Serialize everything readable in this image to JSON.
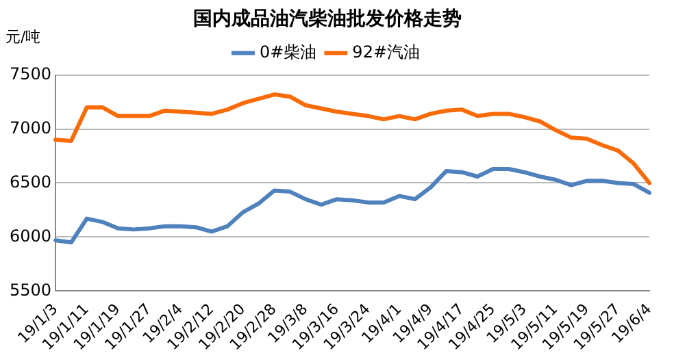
{
  "chart_data": {
    "type": "line",
    "title": "国内成品油汽柴油批发价格走势",
    "ylabel": "元/吨",
    "categories": [
      "19/1/3",
      null,
      "19/1/11",
      null,
      "19/1/19",
      null,
      "19/1/27",
      null,
      "19/2/4",
      null,
      "19/2/12",
      null,
      "19/2/20",
      null,
      "19/2/28",
      null,
      "19/3/8",
      null,
      "19/3/16",
      null,
      "19/3/24",
      null,
      "19/4/1",
      null,
      "19/4/9",
      null,
      "19/4/17",
      null,
      "19/4/25",
      null,
      "19/5/3",
      null,
      "19/5/11",
      null,
      "19/5/19",
      null,
      "19/5/27",
      null,
      "19/6/4"
    ],
    "series": [
      {
        "name": "0#柴油",
        "color": "#4f81bd",
        "values": [
          5970,
          5950,
          6170,
          6140,
          6080,
          6070,
          6080,
          6100,
          6100,
          6090,
          6050,
          6100,
          6230,
          6310,
          6430,
          6420,
          6350,
          6300,
          6350,
          6340,
          6320,
          6320,
          6380,
          6350,
          6460,
          6610,
          6600,
          6560,
          6630,
          6630,
          6600,
          6560,
          6530,
          6480,
          6520,
          6520,
          6500,
          6490,
          6410
        ]
      },
      {
        "name": "92#汽油",
        "color": "#f96b07",
        "values": [
          6900,
          6890,
          7200,
          7200,
          7120,
          7120,
          7120,
          7170,
          7160,
          7150,
          7140,
          7180,
          7240,
          7280,
          7320,
          7300,
          7220,
          7190,
          7160,
          7140,
          7120,
          7090,
          7120,
          7090,
          7140,
          7170,
          7180,
          7120,
          7140,
          7140,
          7110,
          7070,
          6990,
          6920,
          6910,
          6850,
          6800,
          6680,
          6500
        ]
      }
    ],
    "ylim": [
      5500,
      7500
    ],
    "yticks": [
      5500,
      6000,
      6500,
      7000,
      7500
    ],
    "grid": "y",
    "legend": "top",
    "marker": "none",
    "line_style": "solid"
  }
}
